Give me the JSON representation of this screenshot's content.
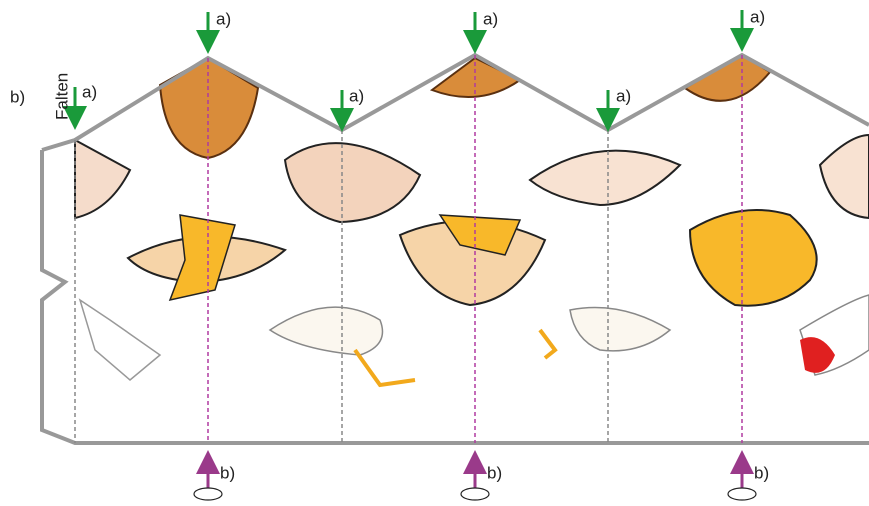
{
  "fold_label": "Falten",
  "side_label": "b)",
  "top_arrows": [
    {
      "label": "a)"
    },
    {
      "label": "a)"
    },
    {
      "label": "a)"
    }
  ],
  "fold_arrows": [
    {
      "label": "a)"
    },
    {
      "label": "a)"
    },
    {
      "label": "a)"
    }
  ],
  "bottom_arrows": [
    {
      "label": "b)"
    },
    {
      "label": "b)"
    },
    {
      "label": "b)"
    }
  ]
}
